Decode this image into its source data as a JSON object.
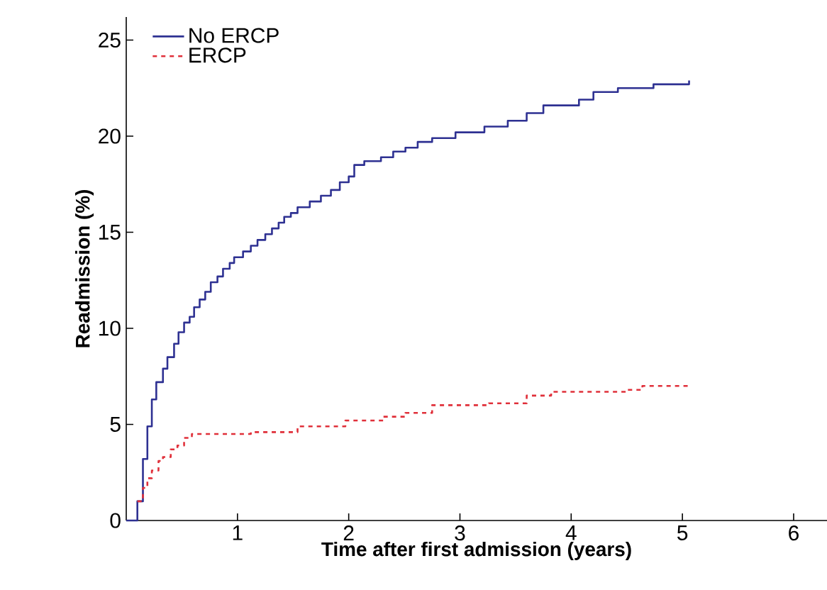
{
  "chart_data": {
    "type": "step",
    "xlabel": "Time after first admission (years)",
    "ylabel": "Readmission (%)",
    "xlim": [
      0,
      6.3
    ],
    "ylim": [
      0,
      26.2
    ],
    "xticks": [
      1,
      2,
      3,
      4,
      5,
      6
    ],
    "yticks": [
      0,
      5,
      10,
      15,
      20,
      25
    ],
    "grid": false,
    "legend": "top left",
    "marker": "none",
    "series": [
      {
        "name": "No ERCP",
        "color": "#2e3192",
        "line_style": "solid",
        "x": [
          0,
          0.1,
          0.15,
          0.19,
          0.23,
          0.27,
          0.33,
          0.37,
          0.43,
          0.47,
          0.52,
          0.57,
          0.61,
          0.66,
          0.71,
          0.76,
          0.82,
          0.87,
          0.93,
          0.97,
          1.05,
          1.12,
          1.18,
          1.25,
          1.31,
          1.37,
          1.42,
          1.48,
          1.54,
          1.65,
          1.75,
          1.84,
          1.92,
          2.0,
          2.05,
          2.14,
          2.29,
          2.4,
          2.51,
          2.62,
          2.75,
          2.96,
          3.22,
          3.43,
          3.6,
          3.75,
          3.92,
          4.07,
          4.2,
          4.42,
          4.74,
          5.06
        ],
        "values": [
          0,
          1.0,
          3.2,
          4.9,
          6.3,
          7.2,
          7.9,
          8.5,
          9.2,
          9.8,
          10.3,
          10.6,
          11.1,
          11.5,
          11.9,
          12.4,
          12.7,
          13.1,
          13.4,
          13.7,
          14.0,
          14.3,
          14.6,
          14.9,
          15.2,
          15.5,
          15.8,
          16.0,
          16.3,
          16.6,
          16.9,
          17.2,
          17.6,
          17.9,
          18.5,
          18.7,
          18.9,
          19.2,
          19.4,
          19.7,
          19.9,
          20.2,
          20.5,
          20.8,
          21.2,
          21.6,
          21.6,
          21.9,
          22.3,
          22.5,
          22.7,
          22.9
        ]
      },
      {
        "name": "ERCP",
        "color": "#e0303a",
        "line_style": "dashed",
        "x": [
          0.1,
          0.15,
          0.19,
          0.23,
          0.29,
          0.33,
          0.4,
          0.46,
          0.52,
          0.59,
          0.76,
          1.12,
          1.54,
          1.97,
          2.31,
          2.51,
          2.75,
          3.26,
          3.6,
          3.82,
          4.51,
          4.64,
          5.06
        ],
        "values": [
          1.0,
          1.7,
          2.2,
          2.6,
          3.1,
          3.3,
          3.7,
          3.9,
          4.3,
          4.5,
          4.5,
          4.6,
          4.9,
          5.2,
          5.4,
          5.6,
          6.0,
          6.1,
          6.5,
          6.7,
          6.8,
          7.0,
          7.0
        ]
      }
    ]
  }
}
